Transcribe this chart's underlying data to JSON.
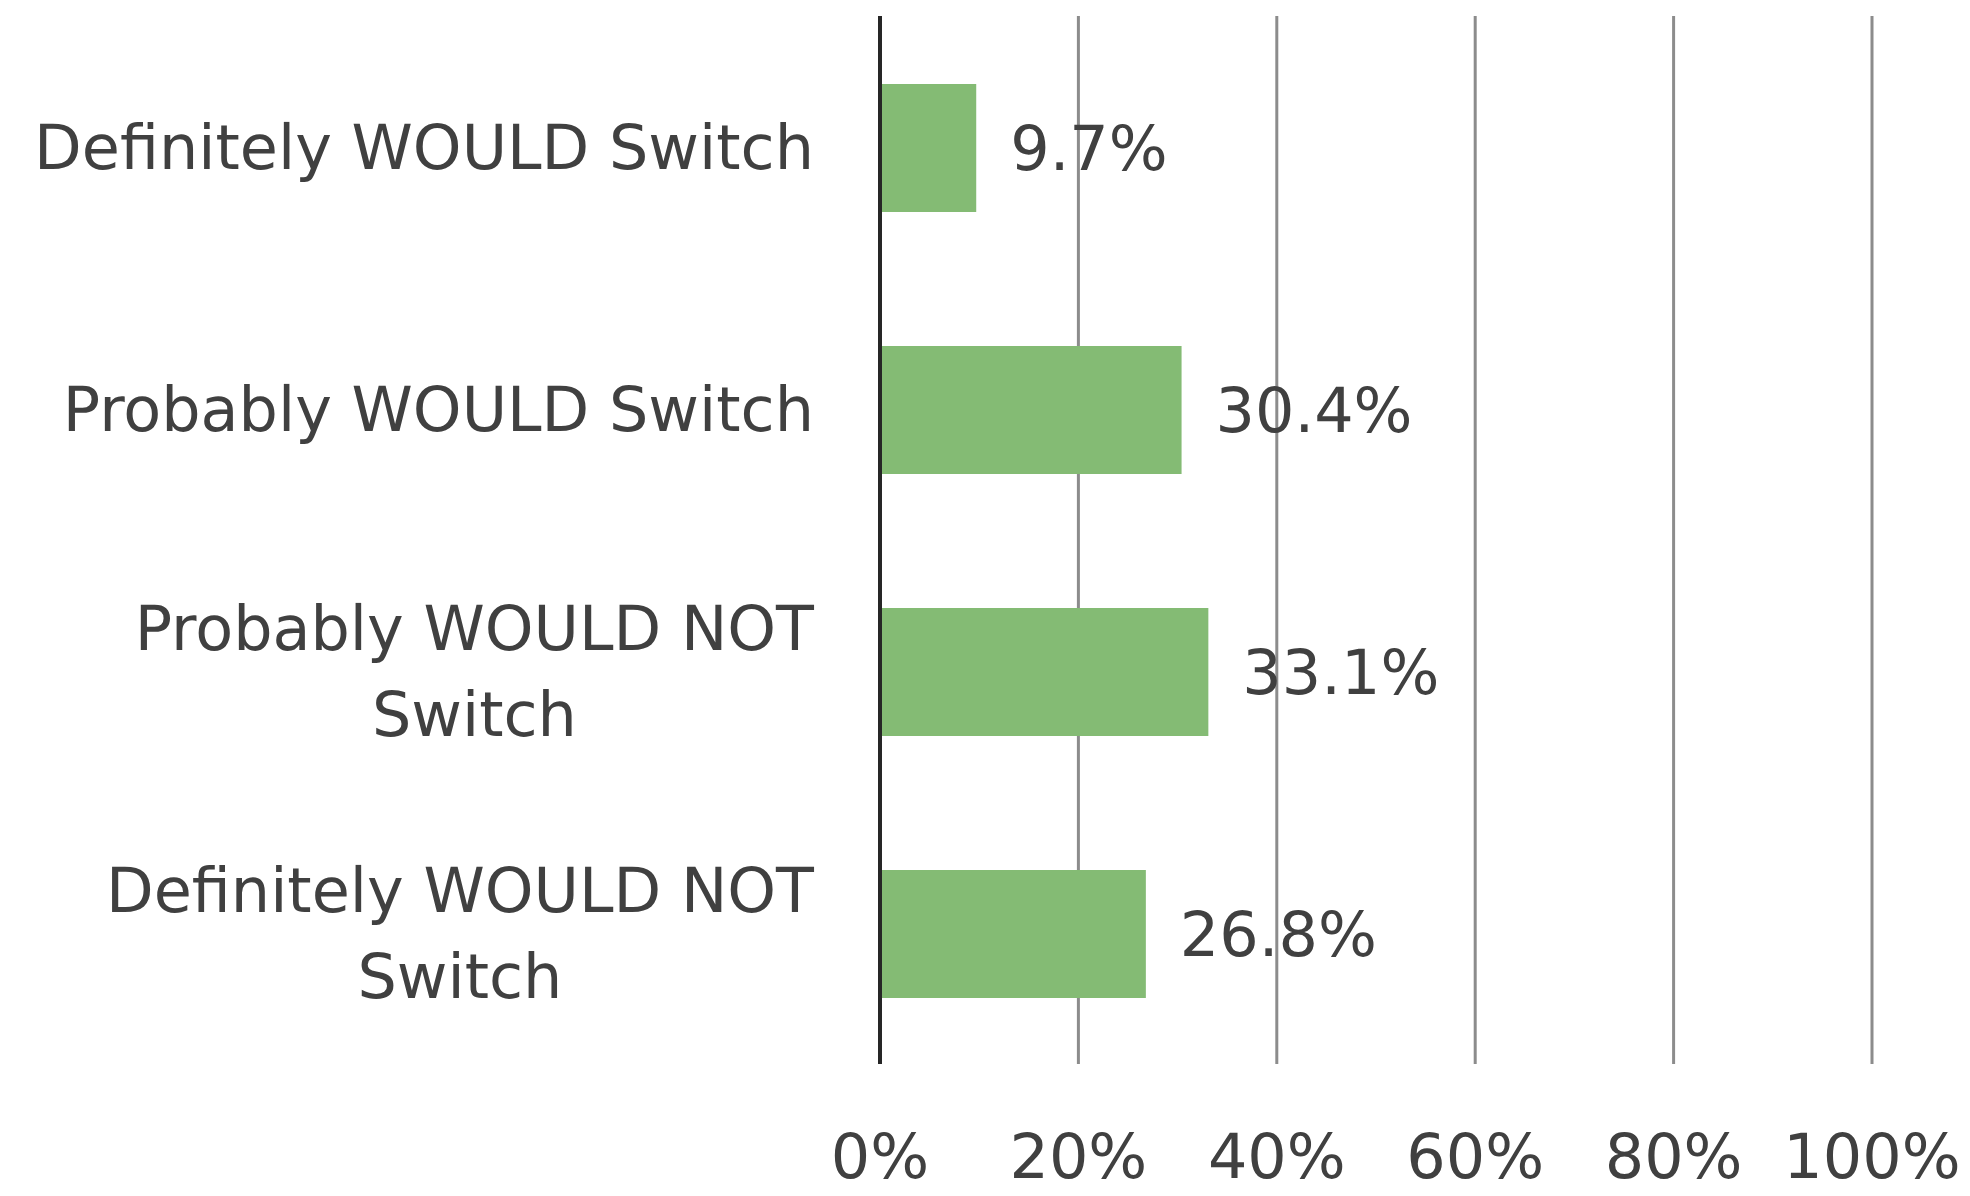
{
  "chart_data": {
    "type": "bar",
    "orientation": "horizontal",
    "categories": [
      "Definitely WOULD Switch",
      "Probably WOULD Switch",
      "Probably WOULD NOT Switch",
      "Definitely WOULD NOT Switch"
    ],
    "values": [
      9.7,
      30.4,
      33.1,
      26.8
    ],
    "value_labels": [
      "9.7%",
      "30.4%",
      "33.1%",
      "26.8%"
    ],
    "color": "#84bb74",
    "xlim": [
      0,
      100
    ],
    "xticks": [
      {
        "value": 0,
        "label": "0%"
      },
      {
        "value": 20,
        "label": "20%"
      },
      {
        "value": 40,
        "label": "40%"
      },
      {
        "value": 60,
        "label": "60%"
      },
      {
        "value": 80,
        "label": "80%"
      },
      {
        "value": 100,
        "label": "100%"
      }
    ],
    "grid": "x"
  }
}
